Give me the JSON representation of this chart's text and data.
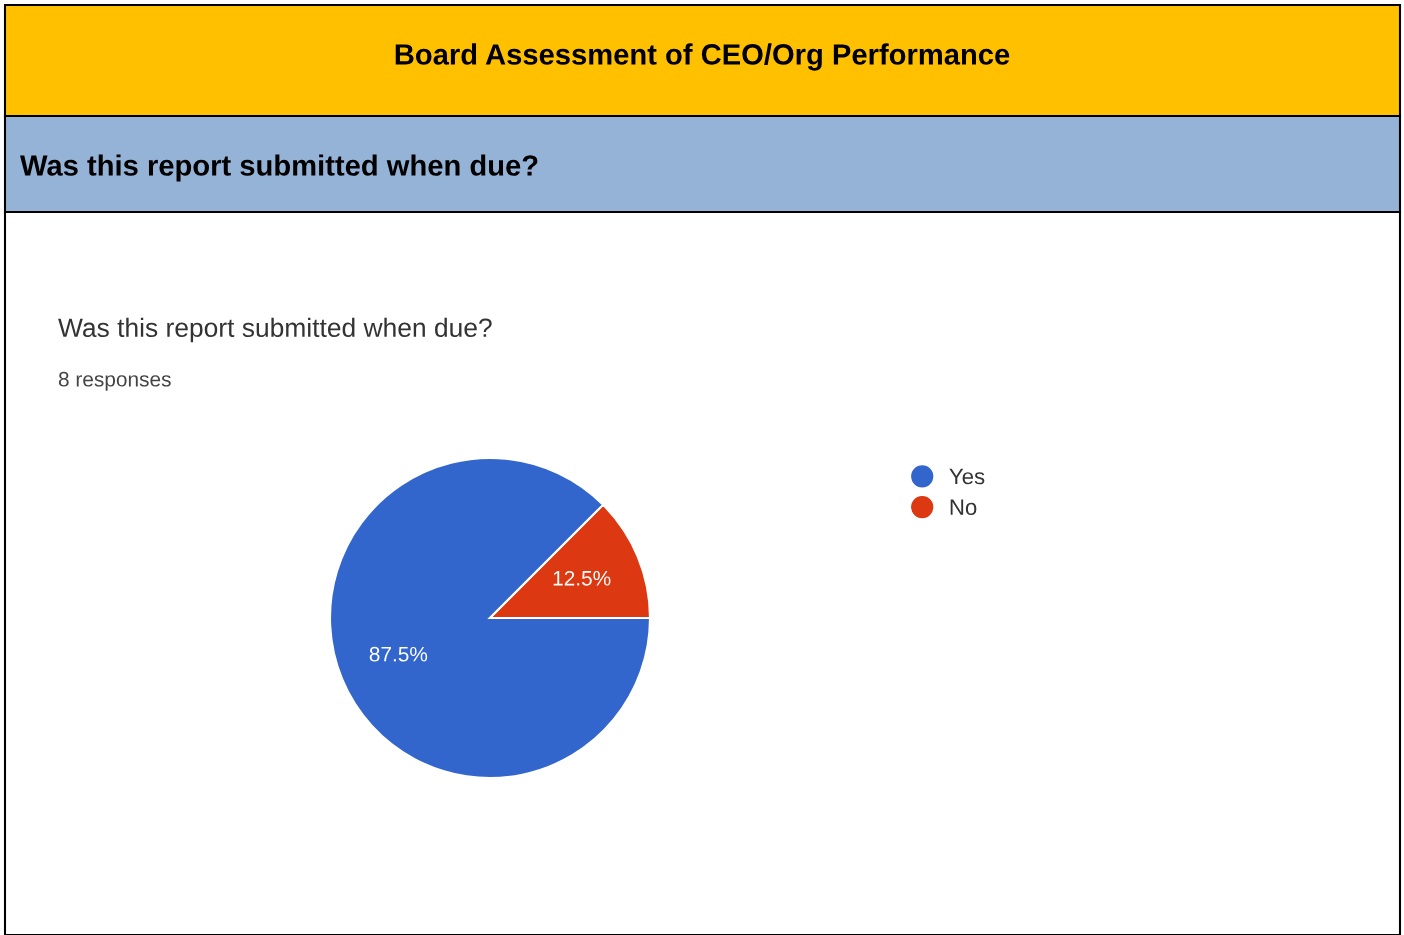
{
  "chart_data": {
    "type": "pie",
    "title": "Board Assessment of CEO/Org Performance",
    "subtitle": "Was this report submitted when due?",
    "annotations": [
      "Was this report submitted when due?",
      "8 responses"
    ],
    "categories": [
      "Yes",
      "No"
    ],
    "values": [
      87.5,
      12.5
    ],
    "colors": [
      "#3366cc",
      "#dc3912"
    ],
    "value_labels": [
      "87.5%",
      "12.5%"
    ],
    "legend": "right"
  }
}
